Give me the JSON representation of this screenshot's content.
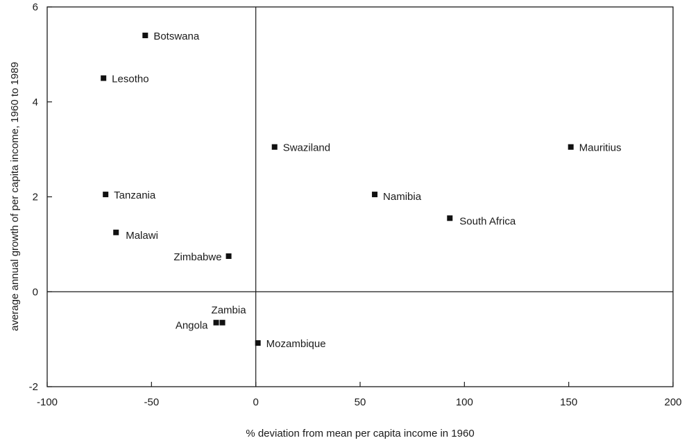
{
  "chart_data": {
    "type": "scatter",
    "xlabel": "% deviation from mean per capita income in 1960",
    "ylabel": "average annual growth of per capita income, 1960 to 1989",
    "xlim": [
      -100,
      200
    ],
    "ylim": [
      -2,
      6
    ],
    "xticks": [
      -100,
      -50,
      0,
      50,
      100,
      150,
      200
    ],
    "yticks": [
      -2,
      0,
      2,
      4,
      6
    ],
    "grid": false,
    "reference_lines": {
      "x": 0,
      "y": 0
    },
    "points": [
      {
        "label": "Botswana",
        "x": -53,
        "y": 5.4
      },
      {
        "label": "Lesotho",
        "x": -73,
        "y": 4.5
      },
      {
        "label": "Swaziland",
        "x": 9,
        "y": 3.05
      },
      {
        "label": "Mauritius",
        "x": 151,
        "y": 3.05
      },
      {
        "label": "Tanzania",
        "x": -72,
        "y": 2.05
      },
      {
        "label": "Namibia",
        "x": 57,
        "y": 2.05
      },
      {
        "label": "South Africa",
        "x": 93,
        "y": 1.55
      },
      {
        "label": "Malawi",
        "x": -67,
        "y": 1.25
      },
      {
        "label": "Zimbabwe",
        "x": -13,
        "y": 0.75
      },
      {
        "label": "Zambia",
        "x": -16,
        "y": -0.65
      },
      {
        "label": "Angola",
        "x": -19,
        "y": -0.65
      },
      {
        "label": "Mozambique",
        "x": 1,
        "y": -1.08
      }
    ]
  }
}
